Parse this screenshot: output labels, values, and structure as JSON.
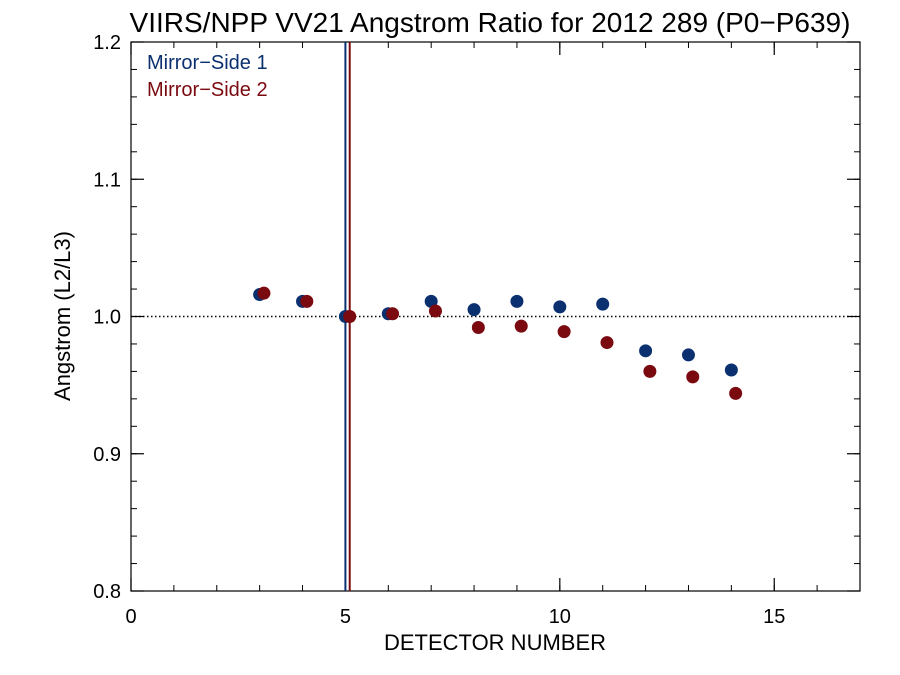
{
  "chart_data": {
    "type": "scatter",
    "title": "VIIRS/NPP VV21 Angstrom Ratio for 2012 289 (P0−P639)",
    "xlabel": "DETECTOR NUMBER",
    "ylabel": "Angstrom (L2/L3)",
    "xlim": [
      0,
      17
    ],
    "ylim": [
      0.8,
      1.2
    ],
    "x_ticks": [
      0,
      5,
      10,
      15
    ],
    "x_tick_labels": [
      "0",
      "5",
      "10",
      "15"
    ],
    "y_ticks": [
      0.8,
      0.9,
      1.0,
      1.1,
      1.2
    ],
    "y_tick_labels": [
      "0.8",
      "0.9",
      "1.0",
      "1.1",
      "1.2"
    ],
    "reference_line": {
      "y": 1.0,
      "style": "dotted"
    },
    "legend_placement": "top-left",
    "series": [
      {
        "name": "Mirror−Side 1",
        "color": "#0b3070",
        "marker_line_x": 5,
        "x": [
          3,
          4,
          5,
          6,
          7,
          8,
          9,
          10,
          11,
          12,
          13,
          14
        ],
        "y": [
          1.016,
          1.011,
          1.0,
          1.002,
          1.011,
          1.005,
          1.011,
          1.007,
          1.009,
          0.975,
          0.972,
          0.961
        ]
      },
      {
        "name": "Mirror−Side 2",
        "color": "#7a0a10",
        "marker_line_x": 5.1,
        "x": [
          3.1,
          4.1,
          5.1,
          6.1,
          7.1,
          8.1,
          9.1,
          10.1,
          11.1,
          12.1,
          13.1,
          14.1
        ],
        "y": [
          1.017,
          1.011,
          1.0,
          1.002,
          1.004,
          0.992,
          0.993,
          0.989,
          0.981,
          0.96,
          0.956,
          0.944
        ]
      }
    ]
  }
}
